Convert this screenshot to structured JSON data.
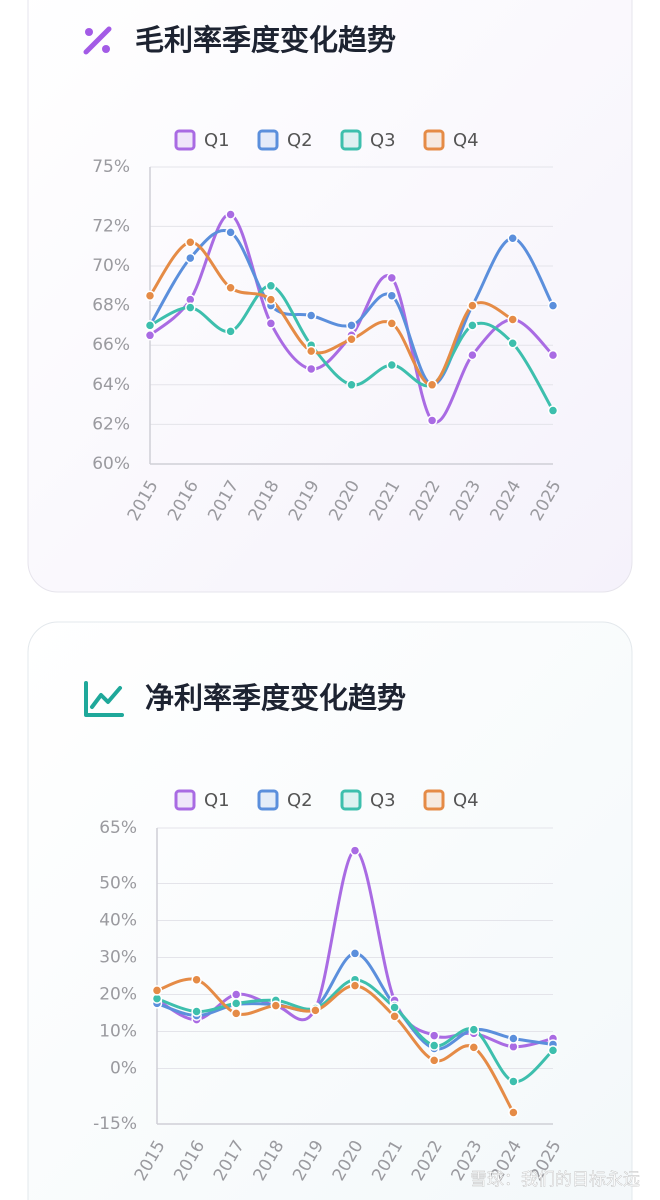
{
  "chart_data": [
    {
      "type": "line",
      "title": "毛利率季度变化趋势",
      "categories": [
        "2015",
        "2016",
        "2017",
        "2018",
        "2019",
        "2020",
        "2021",
        "2022",
        "2023",
        "2024",
        "2025"
      ],
      "series": [
        {
          "name": "Q1",
          "color": "#a96be3",
          "values": [
            66.5,
            68.3,
            72.6,
            67.1,
            64.8,
            66.5,
            69.4,
            62.2,
            65.5,
            67.3,
            65.5
          ]
        },
        {
          "name": "Q2",
          "color": "#5b8fdc",
          "values": [
            67.0,
            70.4,
            71.7,
            68.0,
            67.5,
            67.0,
            68.5,
            64.0,
            68.0,
            71.4,
            68.0
          ]
        },
        {
          "name": "Q3",
          "color": "#3dbfad",
          "values": [
            67.0,
            67.9,
            66.7,
            69.0,
            66.0,
            64.0,
            65.0,
            64.0,
            67.0,
            66.1,
            62.7
          ]
        },
        {
          "name": "Q4",
          "color": "#e58b46",
          "values": [
            68.5,
            71.2,
            68.9,
            68.3,
            65.7,
            66.3,
            67.1,
            64.0,
            68.0,
            67.3,
            null
          ]
        }
      ],
      "ylim": [
        60,
        75
      ],
      "yticks": [
        {
          "value": 60,
          "label": "60%"
        },
        {
          "value": 62,
          "label": "62%"
        },
        {
          "value": 64,
          "label": "64%"
        },
        {
          "value": 66,
          "label": "66%"
        },
        {
          "value": 68,
          "label": "68%"
        },
        {
          "value": 70,
          "label": "70%"
        },
        {
          "value": 72,
          "label": "72%"
        },
        {
          "value": 75,
          "label": "75%"
        }
      ],
      "grid": true
    },
    {
      "type": "line",
      "title": "净利率季度变化趋势",
      "categories": [
        "2015",
        "2016",
        "2017",
        "2018",
        "2019",
        "2020",
        "2021",
        "2022",
        "2023",
        "2024",
        "2025"
      ],
      "series": [
        {
          "name": "Q1",
          "color": "#a96be3",
          "values": [
            18.6,
            13.2,
            20.0,
            17.0,
            16.2,
            58.9,
            18.4,
            8.9,
            9.5,
            5.9,
            8.1
          ]
        },
        {
          "name": "Q2",
          "color": "#5b8fdc",
          "values": [
            17.6,
            14.3,
            17.3,
            17.3,
            16.5,
            31.1,
            17.0,
            5.4,
            10.5,
            8.1,
            6.5
          ]
        },
        {
          "name": "Q3",
          "color": "#3dbfad",
          "values": [
            18.9,
            15.4,
            17.6,
            18.4,
            16.2,
            24.0,
            16.5,
            6.2,
            10.5,
            -3.5,
            4.9
          ]
        },
        {
          "name": "Q4",
          "color": "#e58b46",
          "values": [
            21.1,
            24.0,
            14.9,
            17.0,
            15.7,
            22.4,
            14.1,
            2.2,
            5.7,
            -11.9,
            null
          ]
        }
      ],
      "ylim": [
        -15,
        65
      ],
      "yticks": [
        {
          "value": -15,
          "label": "-15%"
        },
        {
          "value": 0,
          "label": "0%"
        },
        {
          "value": 10,
          "label": "10%"
        },
        {
          "value": 20,
          "label": "20%"
        },
        {
          "value": 30,
          "label": "30%"
        },
        {
          "value": 40,
          "label": "40%"
        },
        {
          "value": 50,
          "label": "50%"
        },
        {
          "value": 65,
          "label": "65%"
        }
      ],
      "grid": true
    }
  ],
  "watermark": "雪球：我们的目标永远"
}
